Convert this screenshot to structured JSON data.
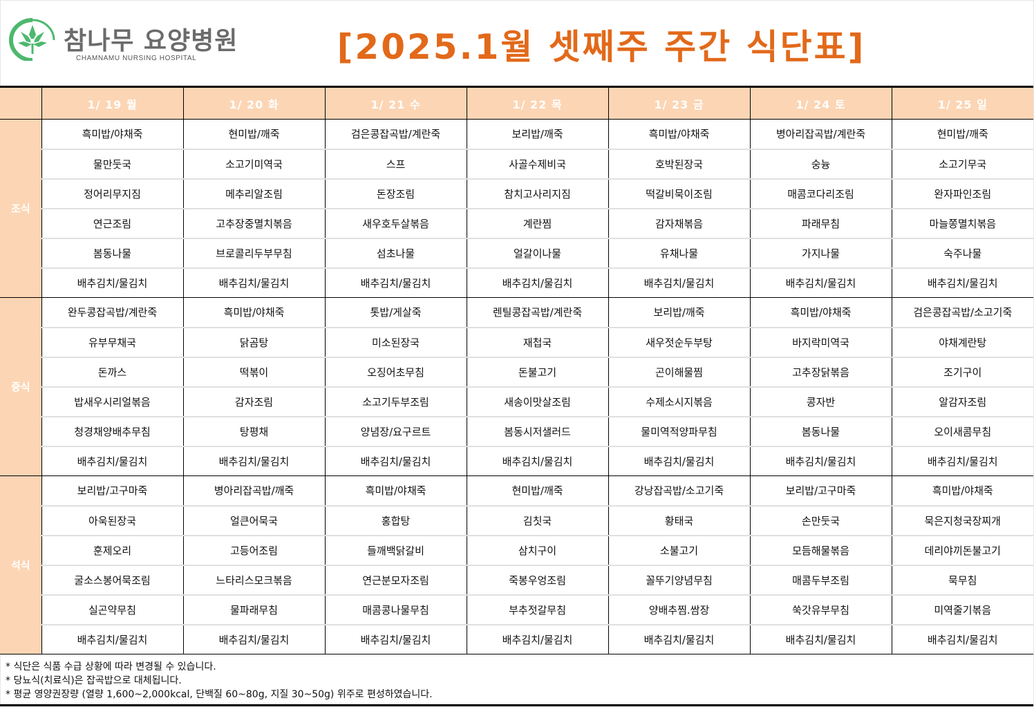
{
  "header": {
    "logo_ko": "참나무 요양병원",
    "logo_en": "CHAMNAMU NURSING HOSPITAL",
    "title": "[2025.1월 셋째주 주간 식단표]",
    "accent_color": "#E2691A",
    "header_bg": "#FCD5B4"
  },
  "days": [
    "1/ 19 월",
    "1/ 20 화",
    "1/ 21 수",
    "1/ 22 목",
    "1/ 23 금",
    "1/ 24 토",
    "1/ 25 일"
  ],
  "meals": [
    {
      "label": "조식",
      "rows": [
        [
          "흑미밥/야채죽",
          "현미밥/깨죽",
          "검은콩잡곡밥/계란죽",
          "보리밥/깨죽",
          "흑미밥/야채죽",
          "병아리잡곡밥/계란죽",
          "현미밥/깨죽"
        ],
        [
          "물만둣국",
          "소고기미역국",
          "스프",
          "사골수제비국",
          "호박된장국",
          "숭늉",
          "소고기무국"
        ],
        [
          "정어리무지짐",
          "메추리알조림",
          "돈장조림",
          "참치고사리지짐",
          "떡갈비묵이조림",
          "매콤코다리조림",
          "완자파인조림"
        ],
        [
          "연근조림",
          "고추장중멸치볶음",
          "새우호두살볶음",
          "계란찜",
          "감자채볶음",
          "파래무침",
          "마늘쫑멸치볶음"
        ],
        [
          "봄동나물",
          "브로콜리두부무침",
          "섬초나물",
          "얼갈이나물",
          "유채나물",
          "가지나물",
          "숙주나물"
        ],
        [
          "배추김치/물김치",
          "배추김치/물김치",
          "배추김치/물김치",
          "배추김치/물김치",
          "배추김치/물김치",
          "배추김치/물김치",
          "배추김치/물김치"
        ]
      ]
    },
    {
      "label": "중식",
      "rows": [
        [
          "완두콩잡곡밥/계란죽",
          "흑미밥/야채죽",
          "톳밥/게살죽",
          "렌틸콩잡곡밥/계란죽",
          "보리밥/깨죽",
          "흑미밥/야채죽",
          "검은콩잡곡밥/소고기죽"
        ],
        [
          "유부무채국",
          "닭곰탕",
          "미소된장국",
          "재첩국",
          "새우젓순두부탕",
          "바지락미역국",
          "야채계란탕"
        ],
        [
          "돈까스",
          "떡볶이",
          "오징어초무침",
          "돈불고기",
          "곤이해물찜",
          "고추장닭볶음",
          "조기구이"
        ],
        [
          "밥새우시리얼볶음",
          "감자조림",
          "소고기두부조림",
          "새송이맛살조림",
          "수제소시지볶음",
          "콩자반",
          "알감자조림"
        ],
        [
          "청경채양배추무침",
          "탕평채",
          "양념장/요구르트",
          "봄동시저샐러드",
          "물미역적양파무침",
          "봄동나물",
          "오이새콤무침"
        ],
        [
          "배추김치/물김치",
          "배추김치/물김치",
          "배추김치/물김치",
          "배추김치/물김치",
          "배추김치/물김치",
          "배추김치/물김치",
          "배추김치/물김치"
        ]
      ]
    },
    {
      "label": "석식",
      "rows": [
        [
          "보리밥/고구마죽",
          "병아리잡곡밥/깨죽",
          "흑미밥/야채죽",
          "현미밥/깨죽",
          "강낭잡곡밥/소고기죽",
          "보리밥/고구마죽",
          "흑미밥/야채죽"
        ],
        [
          "아욱된장국",
          "얼큰어묵국",
          "홍합탕",
          "김칫국",
          "황태국",
          "손만둣국",
          "묵은지청국장찌개"
        ],
        [
          "훈제오리",
          "고등어조림",
          "들깨백닭갈비",
          "삼치구이",
          "소불고기",
          "모듬해물볶음",
          "데리야끼돈불고기"
        ],
        [
          "굴소스봉어묵조림",
          "느타리스모크볶음",
          "연근분모자조림",
          "죽봉우엉조림",
          "꼴뚜기양념무침",
          "매콤두부조림",
          "묵무침"
        ],
        [
          "실곤약무침",
          "물파래무침",
          "매콤콩나물무침",
          "부추젓갈무침",
          "양배추찜.쌈장",
          "쑥갓유부무침",
          "미역줄기볶음"
        ],
        [
          "배추김치/물김치",
          "배추김치/물김치",
          "배추김치/물김치",
          "배추김치/물김치",
          "배추김치/물김치",
          "배추김치/물김치",
          "배추김치/물김치"
        ]
      ]
    }
  ],
  "notes": [
    "* 식단은 식품 수급 상황에 따라 변경될 수 있습니다.",
    "* 당뇨식(치료식)은 잡곡밥으로 대체됩니다.",
    "* 평균 영양권장량 (열량 1,600~2,000kcal, 단백질 60~80g, 지질 30~50g) 위주로 편성하였습니다."
  ]
}
